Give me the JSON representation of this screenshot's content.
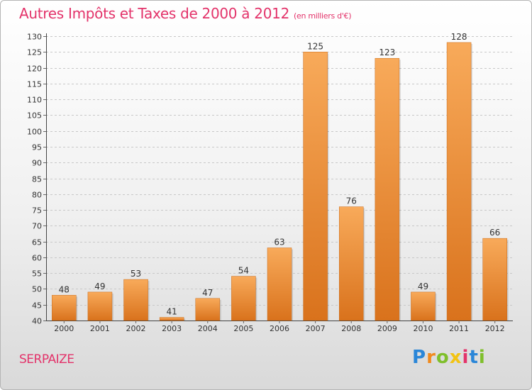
{
  "title": "Autres Impôts et Taxes de 2000 à 2012",
  "unit": "(en milliers d'€)",
  "commune": "SERPAIZE",
  "logo": [
    "P",
    "r",
    "o",
    "x",
    "i",
    "t",
    "i"
  ],
  "colors": {
    "title": "#e3336a",
    "bar_light": "#f8aa5a",
    "bar_dark": "#d9721c",
    "grid": "#c8c8c8"
  },
  "chart_data": {
    "type": "bar",
    "title": "Autres Impôts et Taxes de 2000 à 2012",
    "subtitle": "(en milliers d'€)",
    "xlabel": "",
    "ylabel": "",
    "categories": [
      "2000",
      "2001",
      "2002",
      "2003",
      "2004",
      "2005",
      "2006",
      "2007",
      "2008",
      "2009",
      "2010",
      "2011",
      "2012"
    ],
    "values": [
      48,
      49,
      53,
      41,
      47,
      54,
      63,
      125,
      76,
      123,
      49,
      128,
      66
    ],
    "ylim": [
      40,
      130
    ],
    "yticks": [
      40,
      45,
      50,
      55,
      60,
      65,
      70,
      75,
      80,
      85,
      90,
      95,
      100,
      105,
      110,
      115,
      120,
      125,
      130
    ],
    "grid": true,
    "legend": "none"
  }
}
